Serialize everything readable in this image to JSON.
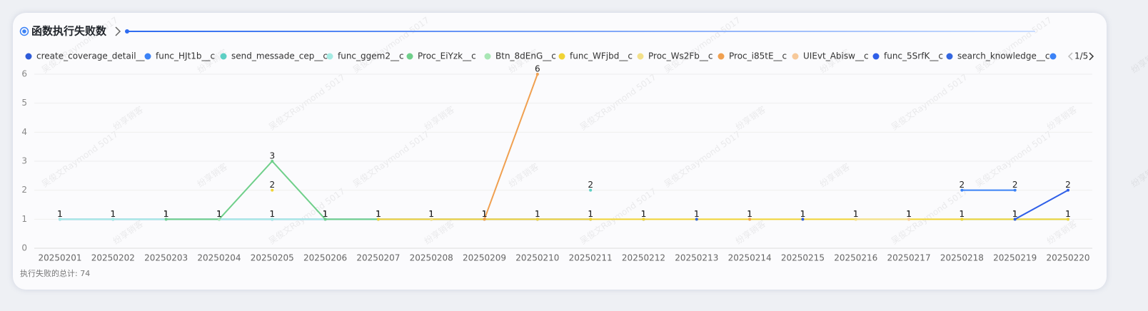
{
  "header": {
    "title": "函数执行失败数",
    "legend_page": "1/5"
  },
  "footer": "执行失败的总计: 74",
  "watermark": [
    "吴俊文Raymond 5017",
    "纷享销客"
  ],
  "chart_data": {
    "type": "line",
    "categories": [
      "20250201",
      "20250202",
      "20250203",
      "20250204",
      "20250205",
      "20250206",
      "20250207",
      "20250208",
      "20250209",
      "20250210",
      "20250211",
      "20250212",
      "20250213",
      "20250214",
      "20250215",
      "20250216",
      "20250217",
      "20250218",
      "20250219",
      "20250220"
    ],
    "ylim": [
      0,
      6
    ],
    "yticks": [
      0,
      1,
      2,
      3,
      4,
      5,
      6
    ],
    "grid": true,
    "series": [
      {
        "name": "create_coverage_detail__c",
        "color": "#2e5bd9",
        "values": [
          1,
          1,
          1,
          1,
          1,
          1,
          1,
          1,
          1,
          1,
          1,
          null,
          null,
          null,
          null,
          null,
          null,
          null,
          null,
          null
        ]
      },
      {
        "name": "func_HJt1b__c",
        "color": "#3b82f6",
        "values": [
          null,
          null,
          null,
          null,
          null,
          null,
          null,
          null,
          null,
          null,
          null,
          1,
          null,
          null,
          null,
          null,
          null,
          2,
          2,
          null
        ]
      },
      {
        "name": "send_messade_cep__c",
        "color": "#5ccfc4",
        "values": [
          null,
          null,
          null,
          null,
          null,
          null,
          null,
          null,
          null,
          null,
          2,
          null,
          null,
          null,
          null,
          null,
          null,
          1,
          1,
          1
        ]
      },
      {
        "name": "func_ggem2__c",
        "color": "#a5ebe3",
        "values": [
          1,
          1,
          1,
          1,
          1,
          1,
          1,
          null,
          null,
          null,
          null,
          null,
          null,
          null,
          null,
          null,
          null,
          null,
          null,
          null
        ]
      },
      {
        "name": "Proc_EiYzk__c",
        "color": "#6fcf8a",
        "values": [
          null,
          null,
          1,
          1,
          3,
          1,
          1,
          null,
          null,
          null,
          null,
          null,
          null,
          null,
          null,
          null,
          null,
          null,
          null,
          null
        ]
      },
      {
        "name": "Btn_8dEnG__c",
        "color": "#a8e6b4",
        "values": [
          null,
          null,
          null,
          1,
          null,
          null,
          null,
          null,
          null,
          null,
          null,
          null,
          null,
          null,
          null,
          null,
          null,
          null,
          null,
          null
        ]
      },
      {
        "name": "func_WFjbd__c",
        "color": "#f0d335",
        "values": [
          null,
          null,
          null,
          null,
          2,
          null,
          1,
          1,
          1,
          1,
          1,
          1,
          1,
          1,
          1,
          1,
          1,
          1,
          1,
          1
        ]
      },
      {
        "name": "Proc_Ws2Fb__c",
        "color": "#f3e08a",
        "values": [
          null,
          null,
          null,
          null,
          null,
          null,
          null,
          1,
          null,
          null,
          null,
          null,
          null,
          null,
          null,
          1,
          1,
          null,
          null,
          null
        ]
      },
      {
        "name": "Proc_i85tE__c",
        "color": "#f0a050",
        "values": [
          null,
          null,
          null,
          null,
          null,
          null,
          null,
          null,
          1,
          6,
          null,
          null,
          null,
          1,
          null,
          null,
          null,
          null,
          null,
          null
        ]
      },
      {
        "name": "UIEvt_Abisw__c",
        "color": "#f7c99a",
        "values": [
          null,
          null,
          null,
          null,
          null,
          null,
          null,
          null,
          null,
          null,
          null,
          null,
          null,
          null,
          null,
          null,
          1,
          null,
          null,
          null
        ]
      },
      {
        "name": "func_5SrfK__c",
        "color": "#2f5fe8",
        "values": [
          null,
          null,
          null,
          null,
          null,
          null,
          null,
          null,
          null,
          null,
          null,
          null,
          null,
          null,
          1,
          null,
          null,
          null,
          1,
          2
        ]
      },
      {
        "name": "search_knowledge__c",
        "color": "#3366e0",
        "values": [
          null,
          null,
          null,
          null,
          null,
          null,
          null,
          null,
          null,
          null,
          null,
          null,
          1,
          null,
          null,
          null,
          null,
          null,
          null,
          null
        ]
      }
    ]
  }
}
